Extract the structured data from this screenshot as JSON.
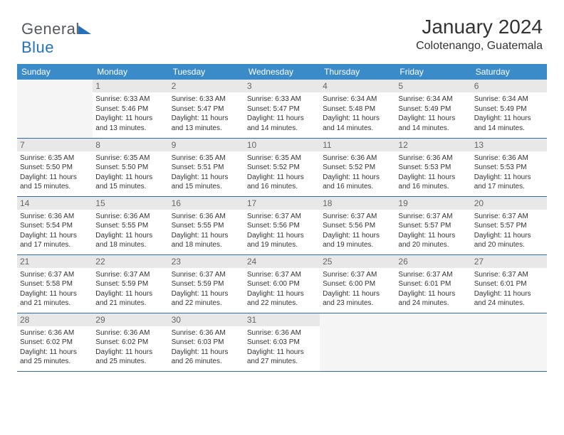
{
  "brand": {
    "part1": "General",
    "part2": "Blue"
  },
  "title": "January 2024",
  "location": "Colotenango, Guatemala",
  "colors": {
    "header_bg": "#3b8bc9",
    "daynum_bg": "#e8e8e8",
    "rule": "#2e6ca3"
  },
  "weekdays": [
    "Sunday",
    "Monday",
    "Tuesday",
    "Wednesday",
    "Thursday",
    "Friday",
    "Saturday"
  ],
  "weeks": [
    [
      {
        "n": "",
        "sunrise": "",
        "sunset": "",
        "daylight": ""
      },
      {
        "n": "1",
        "sunrise": "Sunrise: 6:33 AM",
        "sunset": "Sunset: 5:46 PM",
        "daylight": "Daylight: 11 hours and 13 minutes."
      },
      {
        "n": "2",
        "sunrise": "Sunrise: 6:33 AM",
        "sunset": "Sunset: 5:47 PM",
        "daylight": "Daylight: 11 hours and 13 minutes."
      },
      {
        "n": "3",
        "sunrise": "Sunrise: 6:33 AM",
        "sunset": "Sunset: 5:47 PM",
        "daylight": "Daylight: 11 hours and 14 minutes."
      },
      {
        "n": "4",
        "sunrise": "Sunrise: 6:34 AM",
        "sunset": "Sunset: 5:48 PM",
        "daylight": "Daylight: 11 hours and 14 minutes."
      },
      {
        "n": "5",
        "sunrise": "Sunrise: 6:34 AM",
        "sunset": "Sunset: 5:49 PM",
        "daylight": "Daylight: 11 hours and 14 minutes."
      },
      {
        "n": "6",
        "sunrise": "Sunrise: 6:34 AM",
        "sunset": "Sunset: 5:49 PM",
        "daylight": "Daylight: 11 hours and 14 minutes."
      }
    ],
    [
      {
        "n": "7",
        "sunrise": "Sunrise: 6:35 AM",
        "sunset": "Sunset: 5:50 PM",
        "daylight": "Daylight: 11 hours and 15 minutes."
      },
      {
        "n": "8",
        "sunrise": "Sunrise: 6:35 AM",
        "sunset": "Sunset: 5:50 PM",
        "daylight": "Daylight: 11 hours and 15 minutes."
      },
      {
        "n": "9",
        "sunrise": "Sunrise: 6:35 AM",
        "sunset": "Sunset: 5:51 PM",
        "daylight": "Daylight: 11 hours and 15 minutes."
      },
      {
        "n": "10",
        "sunrise": "Sunrise: 6:35 AM",
        "sunset": "Sunset: 5:52 PM",
        "daylight": "Daylight: 11 hours and 16 minutes."
      },
      {
        "n": "11",
        "sunrise": "Sunrise: 6:36 AM",
        "sunset": "Sunset: 5:52 PM",
        "daylight": "Daylight: 11 hours and 16 minutes."
      },
      {
        "n": "12",
        "sunrise": "Sunrise: 6:36 AM",
        "sunset": "Sunset: 5:53 PM",
        "daylight": "Daylight: 11 hours and 16 minutes."
      },
      {
        "n": "13",
        "sunrise": "Sunrise: 6:36 AM",
        "sunset": "Sunset: 5:53 PM",
        "daylight": "Daylight: 11 hours and 17 minutes."
      }
    ],
    [
      {
        "n": "14",
        "sunrise": "Sunrise: 6:36 AM",
        "sunset": "Sunset: 5:54 PM",
        "daylight": "Daylight: 11 hours and 17 minutes."
      },
      {
        "n": "15",
        "sunrise": "Sunrise: 6:36 AM",
        "sunset": "Sunset: 5:55 PM",
        "daylight": "Daylight: 11 hours and 18 minutes."
      },
      {
        "n": "16",
        "sunrise": "Sunrise: 6:36 AM",
        "sunset": "Sunset: 5:55 PM",
        "daylight": "Daylight: 11 hours and 18 minutes."
      },
      {
        "n": "17",
        "sunrise": "Sunrise: 6:37 AM",
        "sunset": "Sunset: 5:56 PM",
        "daylight": "Daylight: 11 hours and 19 minutes."
      },
      {
        "n": "18",
        "sunrise": "Sunrise: 6:37 AM",
        "sunset": "Sunset: 5:56 PM",
        "daylight": "Daylight: 11 hours and 19 minutes."
      },
      {
        "n": "19",
        "sunrise": "Sunrise: 6:37 AM",
        "sunset": "Sunset: 5:57 PM",
        "daylight": "Daylight: 11 hours and 20 minutes."
      },
      {
        "n": "20",
        "sunrise": "Sunrise: 6:37 AM",
        "sunset": "Sunset: 5:57 PM",
        "daylight": "Daylight: 11 hours and 20 minutes."
      }
    ],
    [
      {
        "n": "21",
        "sunrise": "Sunrise: 6:37 AM",
        "sunset": "Sunset: 5:58 PM",
        "daylight": "Daylight: 11 hours and 21 minutes."
      },
      {
        "n": "22",
        "sunrise": "Sunrise: 6:37 AM",
        "sunset": "Sunset: 5:59 PM",
        "daylight": "Daylight: 11 hours and 21 minutes."
      },
      {
        "n": "23",
        "sunrise": "Sunrise: 6:37 AM",
        "sunset": "Sunset: 5:59 PM",
        "daylight": "Daylight: 11 hours and 22 minutes."
      },
      {
        "n": "24",
        "sunrise": "Sunrise: 6:37 AM",
        "sunset": "Sunset: 6:00 PM",
        "daylight": "Daylight: 11 hours and 22 minutes."
      },
      {
        "n": "25",
        "sunrise": "Sunrise: 6:37 AM",
        "sunset": "Sunset: 6:00 PM",
        "daylight": "Daylight: 11 hours and 23 minutes."
      },
      {
        "n": "26",
        "sunrise": "Sunrise: 6:37 AM",
        "sunset": "Sunset: 6:01 PM",
        "daylight": "Daylight: 11 hours and 24 minutes."
      },
      {
        "n": "27",
        "sunrise": "Sunrise: 6:37 AM",
        "sunset": "Sunset: 6:01 PM",
        "daylight": "Daylight: 11 hours and 24 minutes."
      }
    ],
    [
      {
        "n": "28",
        "sunrise": "Sunrise: 6:36 AM",
        "sunset": "Sunset: 6:02 PM",
        "daylight": "Daylight: 11 hours and 25 minutes."
      },
      {
        "n": "29",
        "sunrise": "Sunrise: 6:36 AM",
        "sunset": "Sunset: 6:02 PM",
        "daylight": "Daylight: 11 hours and 25 minutes."
      },
      {
        "n": "30",
        "sunrise": "Sunrise: 6:36 AM",
        "sunset": "Sunset: 6:03 PM",
        "daylight": "Daylight: 11 hours and 26 minutes."
      },
      {
        "n": "31",
        "sunrise": "Sunrise: 6:36 AM",
        "sunset": "Sunset: 6:03 PM",
        "daylight": "Daylight: 11 hours and 27 minutes."
      },
      {
        "n": "",
        "sunrise": "",
        "sunset": "",
        "daylight": ""
      },
      {
        "n": "",
        "sunrise": "",
        "sunset": "",
        "daylight": ""
      },
      {
        "n": "",
        "sunrise": "",
        "sunset": "",
        "daylight": ""
      }
    ]
  ]
}
